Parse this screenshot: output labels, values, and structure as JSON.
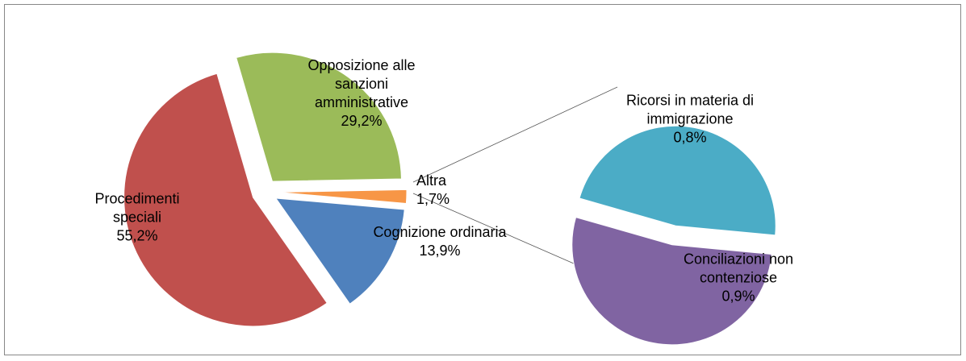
{
  "chart_data": {
    "type": "pie-of-pie",
    "categories": [
      "Cognizione ordinaria",
      "Procedimenti speciali",
      "Opposizione alle sanzioni amministrative",
      "Altra"
    ],
    "values": [
      13.9,
      55.2,
      29.2,
      1.7
    ],
    "value_labels": [
      "13,9%",
      "55,2%",
      "29,2%",
      "1,7%"
    ],
    "colors": [
      "#4f81bd",
      "#c0504d",
      "#9bbb59",
      "#f79646"
    ],
    "secondary": {
      "categories": [
        "Ricorsi in materia di immigrazione",
        "Conciliazioni non contenziose"
      ],
      "values": [
        0.8,
        0.9
      ],
      "value_labels": [
        "0,8%",
        "0,9%"
      ],
      "colors": [
        "#4bacc6",
        "#8064a2"
      ]
    }
  }
}
